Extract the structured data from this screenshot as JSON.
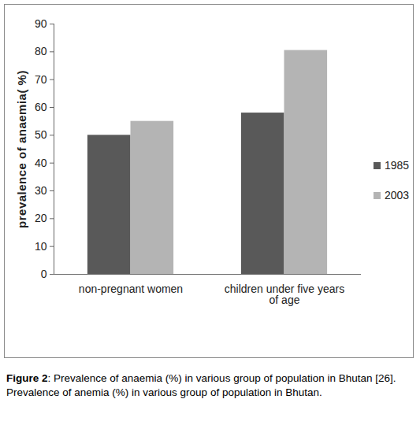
{
  "chart_data": {
    "type": "bar",
    "categories": [
      "non-pregnant women",
      "children under five years of age"
    ],
    "series": [
      {
        "name": "1985",
        "color": "#595959",
        "values": [
          50,
          58
        ]
      },
      {
        "name": "2003",
        "color": "#b4b4b4",
        "values": [
          55,
          80.5
        ]
      }
    ],
    "y_label": "prevalence of anaemia( %)",
    "ylim": [
      0,
      90
    ],
    "yticks": [
      0,
      10,
      20,
      30,
      40,
      50,
      60,
      70,
      80,
      90
    ],
    "grid": false,
    "legend": "right",
    "caption": "Figure 2: Prevalence of anaemia (%) in various group of population in Bhutan [26]. Prevalence of anemia (%) in various group of population in Bhutan."
  }
}
